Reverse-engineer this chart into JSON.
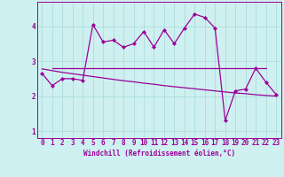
{
  "xlabel": "Windchill (Refroidissement éolien,°C)",
  "bg_color": "#cff0f0",
  "grid_color": "#aadddd",
  "line_color": "#990099",
  "x_data": [
    0,
    1,
    2,
    3,
    4,
    5,
    6,
    7,
    8,
    9,
    10,
    11,
    12,
    13,
    14,
    15,
    16,
    17,
    18,
    19,
    20,
    21,
    22,
    23
  ],
  "y_jagged": [
    2.65,
    2.3,
    2.5,
    2.5,
    2.45,
    4.05,
    3.55,
    3.6,
    3.4,
    3.5,
    3.85,
    3.4,
    3.9,
    3.5,
    3.95,
    4.35,
    4.25,
    3.95,
    1.3,
    2.15,
    2.2,
    2.8,
    2.4,
    2.05
  ],
  "y_flat": [
    2.8,
    2.8,
    2.8,
    2.8,
    2.8,
    2.8,
    2.8,
    2.8,
    2.8,
    2.8,
    2.8,
    2.8,
    2.8,
    2.8,
    2.8,
    2.8,
    2.8,
    2.8,
    2.8,
    2.8,
    2.8,
    2.8,
    2.8,
    2.8
  ],
  "y_reg": [
    2.78,
    2.73,
    2.68,
    2.64,
    2.6,
    2.56,
    2.52,
    2.48,
    2.44,
    2.41,
    2.37,
    2.34,
    2.3,
    2.27,
    2.24,
    2.21,
    2.18,
    2.15,
    2.12,
    2.09,
    2.07,
    2.04,
    2.02,
    2.0
  ],
  "ylim": [
    0.8,
    4.7
  ],
  "yticks": [
    1,
    2,
    3,
    4
  ],
  "xticks": [
    0,
    1,
    2,
    3,
    4,
    5,
    6,
    7,
    8,
    9,
    10,
    11,
    12,
    13,
    14,
    15,
    16,
    17,
    18,
    19,
    20,
    21,
    22,
    23
  ],
  "tick_fontsize": 5.5,
  "xlabel_fontsize": 5.5
}
